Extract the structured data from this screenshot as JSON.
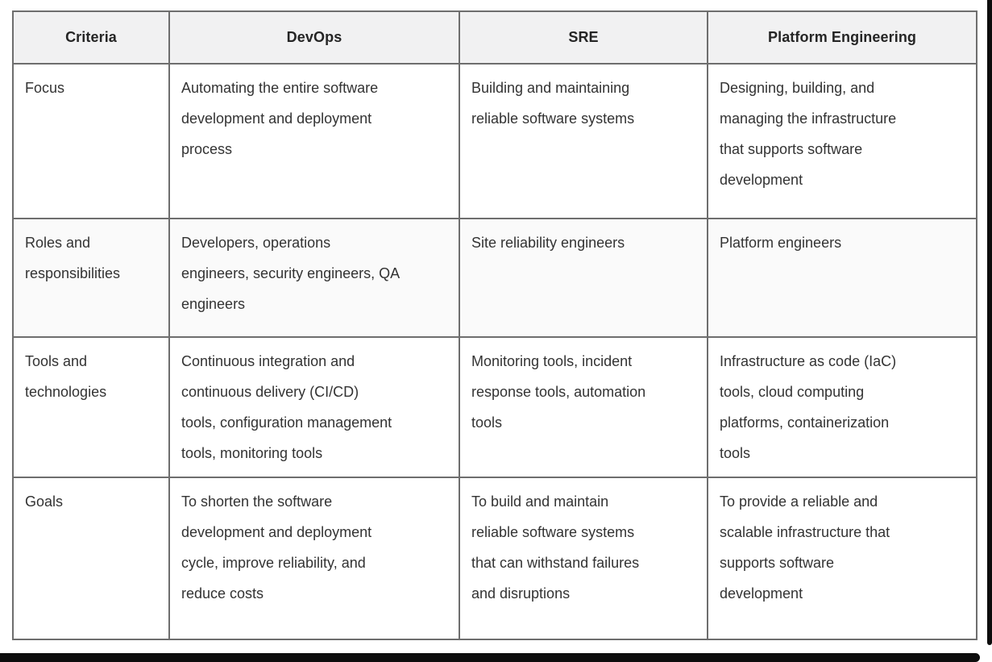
{
  "table": {
    "headers": [
      "Criteria",
      "DevOps",
      "SRE",
      "Platform Engineering"
    ],
    "rows": [
      [
        "Focus",
        "Automating the entire software\ndevelopment and deployment\nprocess",
        "Building and maintaining\nreliable software systems",
        "Designing, building, and\nmanaging the infrastructure\nthat supports software\ndevelopment"
      ],
      [
        "Roles and\nresponsibilities",
        "Developers, operations\nengineers, security engineers, QA\nengineers",
        "Site reliability engineers",
        "Platform engineers"
      ],
      [
        "Tools and\ntechnologies",
        "Continuous integration and\ncontinuous delivery (CI/CD)\ntools, configuration management\ntools, monitoring tools",
        "Monitoring tools, incident\nresponse tools, automation\ntools",
        "Infrastructure as code (IaC)\ntools, cloud computing\nplatforms, containerization\ntools"
      ],
      [
        "Goals",
        "To shorten the software\ndevelopment and deployment\ncycle, improve reliability, and\nreduce costs",
        "To build and maintain\nreliable software systems\nthat can withstand failures\nand disruptions",
        "To provide a reliable and\nscalable infrastructure that\nsupports software\ndevelopment"
      ]
    ],
    "colors": {
      "header_bg": "#f1f1f2",
      "alt_row_bg": "#fafafa",
      "border_outer": "#414141",
      "border_inner": "#6e6e6e",
      "text": "#333333",
      "frame": "#0d0d0d"
    }
  }
}
